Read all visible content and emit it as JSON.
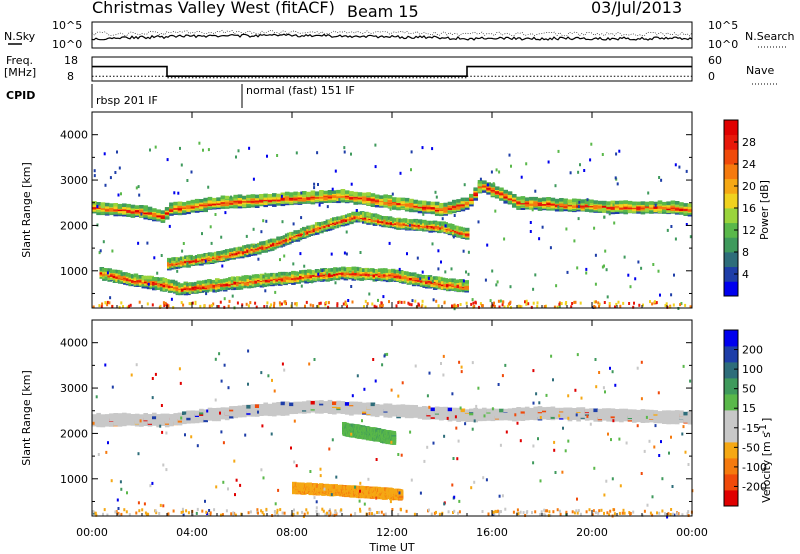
{
  "header": {
    "title": "Christmas Valley West (fitACF)",
    "beam": "Beam 15",
    "date": "03/Jul/2013"
  },
  "nsky_panel": {
    "left_label": "N.Sky",
    "left_ticks": [
      "10^5",
      "10^0"
    ],
    "right_label": "N.Search",
    "right_ticks": [
      "10^5",
      "10^0"
    ]
  },
  "freq_panel": {
    "left_label_1": "Freq.",
    "left_label_2": "[MHz]",
    "left_ticks": [
      "18",
      "8"
    ],
    "right_label": "Nave",
    "right_ticks": [
      "60",
      "0"
    ]
  },
  "cpid": {
    "label": "CPID",
    "modes": [
      {
        "name": "rbsp 201 IF",
        "start_hour": 0,
        "end_hour": 6
      },
      {
        "name": "normal (fast) 151 IF",
        "start_hour": 6,
        "end_hour": 24
      }
    ]
  },
  "chart_data": [
    {
      "type": "line",
      "title": "",
      "series": [
        {
          "name": "Freq.",
          "x": [
            0,
            3,
            3,
            15,
            15,
            24
          ],
          "values": [
            14,
            14,
            10,
            10,
            14,
            14
          ]
        },
        {
          "name": "Nave",
          "x": [
            0,
            3,
            3,
            15,
            15,
            24
          ],
          "values": [
            12,
            12,
            8,
            8,
            12,
            12
          ]
        }
      ],
      "xlim": [
        0,
        24
      ],
      "ylim_left": [
        8,
        18
      ],
      "ylim_right": [
        0,
        60
      ]
    },
    {
      "type": "heatmap",
      "title": "",
      "xlabel": "",
      "ylabel": "Slant Range [km]",
      "xlim": [
        0,
        24
      ],
      "ylim": [
        180,
        4500
      ],
      "yticks": [
        1000,
        2000,
        3000,
        4000
      ],
      "colorbar": {
        "label": "Power [dB]",
        "ticks": [
          "28",
          "24",
          "20",
          "16",
          "12",
          "8",
          "4"
        ],
        "range": [
          0,
          30
        ],
        "colors": [
          "#0000ee",
          "#1e3ea8",
          "#2e6d7a",
          "#3f9a5c",
          "#5ab84a",
          "#9ad43c",
          "#f0d21e",
          "#f5a814",
          "#f57a0e",
          "#f04a0a",
          "#e8180a",
          "#e00000"
        ]
      },
      "features": [
        {
          "name": "high band",
          "x": [
            0,
            1,
            2,
            2.8,
            3,
            5,
            8,
            10,
            12,
            14,
            15,
            15.5,
            17,
            19,
            21,
            23,
            24
          ],
          "range_km": [
            2400,
            2350,
            2300,
            2200,
            2350,
            2500,
            2600,
            2650,
            2500,
            2350,
            2500,
            2900,
            2500,
            2450,
            2400,
            2400,
            2350
          ]
        },
        {
          "name": "rising band",
          "x": [
            3,
            5,
            7,
            9,
            10.5,
            12,
            14,
            15
          ],
          "range_km": [
            1150,
            1300,
            1550,
            1950,
            2200,
            2050,
            1950,
            1800
          ]
        },
        {
          "name": "low strong band",
          "x": [
            0.3,
            1.5,
            2.8,
            3.5,
            6,
            8,
            10,
            12,
            14,
            15
          ],
          "range_km": [
            950,
            800,
            700,
            600,
            750,
            850,
            950,
            900,
            700,
            650
          ]
        }
      ]
    },
    {
      "type": "heatmap",
      "title": "",
      "xlabel": "Time UT",
      "ylabel": "Slant Range [km]",
      "x_tick_labels": [
        "00:00",
        "04:00",
        "08:00",
        "12:00",
        "16:00",
        "20:00",
        "00:00"
      ],
      "xlim": [
        0,
        24
      ],
      "ylim": [
        180,
        4500
      ],
      "yticks": [
        1000,
        2000,
        3000,
        4000
      ],
      "colorbar": {
        "label": "Velocity [m s^-1]",
        "ticks": [
          "200",
          "100",
          "50",
          "15",
          "-15",
          "-50",
          "-100",
          "-200"
        ],
        "range": [
          -250,
          250
        ],
        "colors": [
          "#e00000",
          "#f04a0a",
          "#f57a0e",
          "#f5a814",
          "#c8c8c8",
          "#c8c8c8",
          "#5ab84a",
          "#3f9a5c",
          "#2e6d7a",
          "#1e3ea8",
          "#0000ee"
        ]
      },
      "features": [
        {
          "name": "ground scatter",
          "x": [
            0,
            3,
            6,
            9,
            12,
            15,
            18,
            21,
            24
          ],
          "range_km": [
            2300,
            2300,
            2500,
            2600,
            2500,
            2400,
            2450,
            2400,
            2350
          ]
        },
        {
          "name": "negative velocity patch",
          "x": [
            8,
            9.5,
            11,
            12.3
          ],
          "range_km": [
            800,
            750,
            700,
            650
          ]
        },
        {
          "name": "positive velocity patch",
          "x": [
            10,
            11,
            12
          ],
          "range_km": [
            2100,
            2000,
            1900
          ]
        }
      ]
    }
  ]
}
